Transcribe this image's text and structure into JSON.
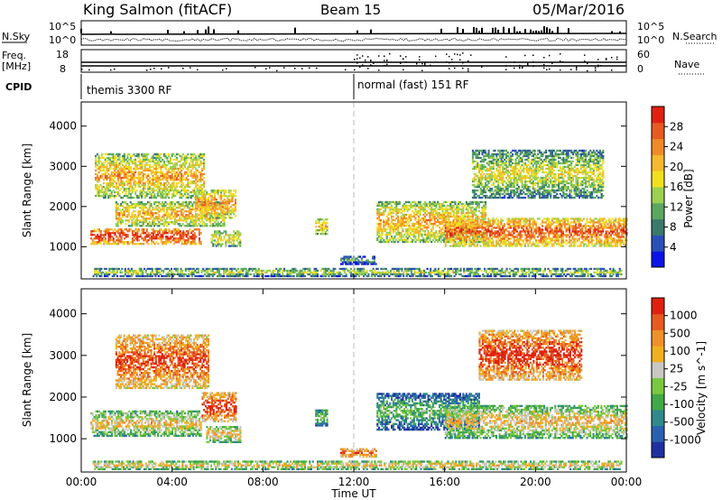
{
  "header": {
    "title": "King Salmon (fitACF)",
    "beam": "Beam 15",
    "date": "05/Mar/2016"
  },
  "summary_panels": {
    "nsky_label": "N.Sky",
    "nsearch_label": "N.Search",
    "freq_label": "Freq.",
    "freq_unit": "[MHz]",
    "nave_label": "Nave",
    "cpid_label": "CPID",
    "noise_ticks_left": [
      "10^5",
      "10^0"
    ],
    "noise_ticks_right": [
      "10^5",
      "10^0"
    ],
    "freq_ticks": [
      "18",
      "8"
    ],
    "nave_ticks": [
      "60",
      "0"
    ],
    "cpid_segments": [
      {
        "label": "themis 3300 RF",
        "start_hour": 0,
        "end_hour": 12
      },
      {
        "label": "normal (fast) 151 RF",
        "start_hour": 12,
        "end_hour": 24
      }
    ]
  },
  "chart_data": [
    {
      "type": "heatmap",
      "name": "power",
      "ylabel": "Slant Range [km]",
      "ylim": [
        200,
        4600
      ],
      "yticks": [
        1000,
        2000,
        3000,
        4000
      ],
      "xlim": [
        0,
        24
      ],
      "colorbar": {
        "label": "Power [dB]",
        "ticks": [
          "28",
          "24",
          "20",
          "16",
          "12",
          "8",
          "4"
        ],
        "colors": [
          "#0a14e6",
          "#2a50b8",
          "#3a7a6c",
          "#5aa860",
          "#9cd050",
          "#f0e020",
          "#f5b830",
          "#f08a28",
          "#e85a20",
          "#e02010"
        ]
      },
      "regions": [
        {
          "t0": 0.4,
          "t1": 5.3,
          "r0": 1050,
          "r1": 1450,
          "level": 0.8
        },
        {
          "t0": 1.5,
          "t1": 6.3,
          "r0": 1500,
          "r1": 2100,
          "level": 0.55
        },
        {
          "t0": 0.6,
          "t1": 5.4,
          "r0": 2200,
          "r1": 3300,
          "level": 0.55
        },
        {
          "t0": 5.0,
          "t1": 6.8,
          "r0": 1700,
          "r1": 2400,
          "level": 0.6
        },
        {
          "t0": 5.7,
          "t1": 7.0,
          "r0": 1000,
          "r1": 1400,
          "level": 0.45
        },
        {
          "t0": 10.3,
          "t1": 10.8,
          "r0": 1300,
          "r1": 1700,
          "level": 0.5
        },
        {
          "t0": 13.0,
          "t1": 17.8,
          "r0": 1100,
          "r1": 2100,
          "level": 0.55
        },
        {
          "t0": 16.0,
          "t1": 24.0,
          "r0": 1000,
          "r1": 1700,
          "level": 0.7
        },
        {
          "t0": 17.2,
          "t1": 23.0,
          "r0": 2200,
          "r1": 3400,
          "level": 0.4
        },
        {
          "t0": 11.4,
          "t1": 13.0,
          "r0": 550,
          "r1": 750,
          "level": 0.2
        },
        {
          "t0": 0.5,
          "t1": 23.8,
          "r0": 250,
          "r1": 450,
          "level": 0.35
        }
      ]
    },
    {
      "type": "heatmap",
      "name": "velocity",
      "ylabel": "Slant Range [km]",
      "xlabel": "Time UT",
      "ylim": [
        200,
        4600
      ],
      "yticks": [
        1000,
        2000,
        3000,
        4000
      ],
      "xlim": [
        0,
        24
      ],
      "xtick_labels": [
        "00:00",
        "04:00",
        "08:00",
        "12:00",
        "16:00",
        "20:00",
        "00:00"
      ],
      "colorbar": {
        "label": "Velocity [m s^-1]",
        "ticks": [
          "1000",
          "500",
          "100",
          "25",
          "-25",
          "-100",
          "-500",
          "-1000"
        ],
        "colors": [
          "#2030a0",
          "#2a60b0",
          "#2f8a8a",
          "#40a848",
          "#7ac840",
          "#c8c8c0",
          "#f0b020",
          "#f09028",
          "#e85a20",
          "#e02010"
        ]
      },
      "regions": [
        {
          "t0": 0.4,
          "t1": 5.3,
          "r0": 1050,
          "r1": 1650,
          "level": 0.5
        },
        {
          "t0": 1.5,
          "t1": 5.6,
          "r0": 2200,
          "r1": 3500,
          "level": 0.75
        },
        {
          "t0": 5.3,
          "t1": 6.8,
          "r0": 1400,
          "r1": 2100,
          "level": 0.8
        },
        {
          "t0": 5.5,
          "t1": 7.0,
          "r0": 900,
          "r1": 1300,
          "level": 0.5
        },
        {
          "t0": 10.3,
          "t1": 10.8,
          "r0": 1300,
          "r1": 1700,
          "level": 0.3
        },
        {
          "t0": 13.0,
          "t1": 17.5,
          "r0": 1200,
          "r1": 2100,
          "level": 0.25
        },
        {
          "t0": 16.0,
          "t1": 24.0,
          "r0": 1000,
          "r1": 1800,
          "level": 0.5
        },
        {
          "t0": 17.5,
          "t1": 22.0,
          "r0": 2400,
          "r1": 3600,
          "level": 0.8
        },
        {
          "t0": 11.4,
          "t1": 13.0,
          "r0": 550,
          "r1": 750,
          "level": 0.75
        },
        {
          "t0": 0.5,
          "t1": 23.8,
          "r0": 250,
          "r1": 450,
          "level": 0.5
        }
      ]
    }
  ]
}
